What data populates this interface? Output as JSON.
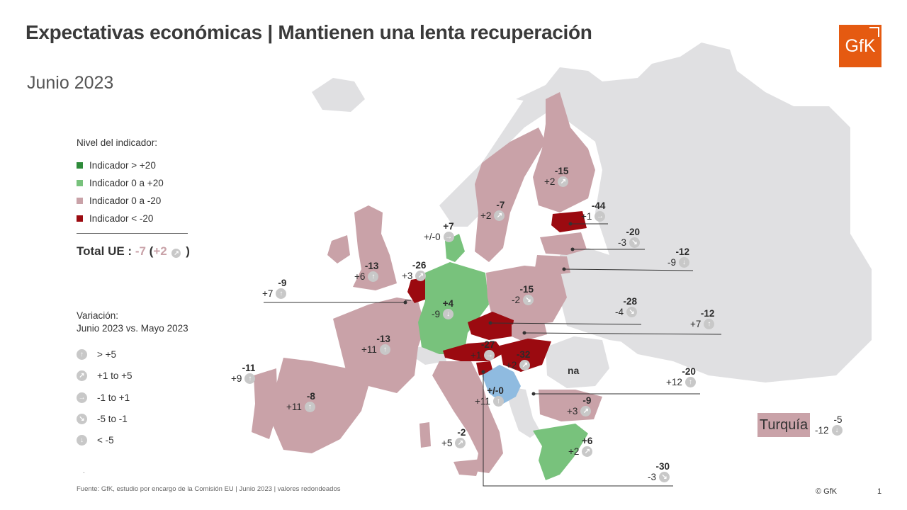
{
  "title": "Expectativas económicas | Mantienen una lenta recuperación",
  "subtitle": "Junio 2023",
  "logo_text": "GfK",
  "colors": {
    "dark_green": "#2e8b3a",
    "light_green": "#78c27c",
    "pink": "#c9a2a8",
    "dark_red": "#9b0a10",
    "light_blue": "#8fbbe0",
    "grey_land": "#e0e0e2",
    "sea": "#ffffff",
    "arrow_grey": "#c8c8c8",
    "brand_orange": "#e55a11"
  },
  "legend": {
    "heading": "Nivel del indicador:",
    "items": [
      {
        "label": "Indicador > +20",
        "color": "#2e8b3a"
      },
      {
        "label": "Indicador 0 a +20",
        "color": "#78c27c"
      },
      {
        "label": "Indicador 0 a -20",
        "color": "#c9a2a8"
      },
      {
        "label": "Indicador < -20",
        "color": "#9b0a10"
      }
    ]
  },
  "total": {
    "label": "Total UE :",
    "value": "-7",
    "change": "+2",
    "change_icon": "arrow-up-right-icon"
  },
  "variation_legend": {
    "heading_line1": "Variación:",
    "heading_line2": "Junio 2023 vs. Mayo 2023",
    "items": [
      {
        "label": "> +5",
        "icon": "arrow-up-icon"
      },
      {
        "label": "+1 to +5",
        "icon": "arrow-up-right-icon"
      },
      {
        "label": "-1 to +1",
        "icon": "arrow-right-icon"
      },
      {
        "label": "-5 to -1",
        "icon": "arrow-down-right-icon"
      },
      {
        "label": "< -5",
        "icon": "arrow-down-icon"
      }
    ]
  },
  "countries": [
    {
      "id": "ireland",
      "level": "-9",
      "change": "+7",
      "icon": "arrow-up-icon"
    },
    {
      "id": "uk",
      "level": "-13",
      "change": "+6",
      "icon": "arrow-up-icon"
    },
    {
      "id": "netherlands",
      "level": "-26",
      "change": "+3",
      "icon": "arrow-up-right-icon"
    },
    {
      "id": "denmark",
      "level": "+7",
      "change": "+/-0",
      "icon": "arrow-right-icon"
    },
    {
      "id": "sweden",
      "level": "-7",
      "change": "+2",
      "icon": "arrow-up-right-icon"
    },
    {
      "id": "finland",
      "level": "-15",
      "change": "+2",
      "icon": "arrow-up-right-icon"
    },
    {
      "id": "estonia",
      "level": "-44",
      "change": "+1",
      "icon": "arrow-right-icon"
    },
    {
      "id": "latvia",
      "level": "-20",
      "change": "-3",
      "icon": "arrow-down-right-icon"
    },
    {
      "id": "lithuania",
      "level": "-12",
      "change": "-9",
      "icon": "arrow-down-icon"
    },
    {
      "id": "poland",
      "level": "-15",
      "change": "-2",
      "icon": "arrow-down-right-icon"
    },
    {
      "id": "czechia",
      "level": "-28",
      "change": "-4",
      "icon": "arrow-down-right-icon"
    },
    {
      "id": "slovakia",
      "level": "-12",
      "change": "+7",
      "icon": "arrow-up-icon"
    },
    {
      "id": "germany",
      "level": "+4",
      "change": "-9",
      "icon": "arrow-down-icon"
    },
    {
      "id": "france",
      "level": "-13",
      "change": "+11",
      "icon": "arrow-up-icon"
    },
    {
      "id": "portugal",
      "level": "-11",
      "change": "+9",
      "icon": "arrow-up-icon"
    },
    {
      "id": "spain",
      "level": "-8",
      "change": "+11",
      "icon": "arrow-up-icon"
    },
    {
      "id": "austria",
      "level": "-27",
      "change": "+1",
      "icon": "arrow-right-icon"
    },
    {
      "id": "hungary",
      "level": "-32",
      "change": "+2",
      "icon": "arrow-up-right-icon"
    },
    {
      "id": "slovenia",
      "level": "+/-0",
      "change": "+11",
      "icon": "arrow-up-icon"
    },
    {
      "id": "croatia",
      "level": "-20",
      "change": "+12",
      "icon": "arrow-up-icon"
    },
    {
      "id": "bulgaria",
      "level": "-9",
      "change": "+3",
      "icon": "arrow-up-right-icon"
    },
    {
      "id": "italy",
      "level": "-2",
      "change": "+5",
      "icon": "arrow-up-right-icon"
    },
    {
      "id": "greece",
      "level": "+6",
      "change": "+2",
      "icon": "arrow-up-right-icon"
    },
    {
      "id": "cyprus",
      "level": "-30",
      "change": "-3",
      "icon": "arrow-down-right-icon"
    },
    {
      "id": "turkey",
      "level": "-5",
      "change": "-12",
      "icon": "arrow-down-icon"
    }
  ],
  "romania_label": "na",
  "turkey_box": "Turquía",
  "source": "Fuente: GfK, estudio por encargo de la Comisión EU | Junio 2023 | valores redondeados",
  "copyright": "© GfK",
  "page_number": "1",
  "dot_mark": "."
}
